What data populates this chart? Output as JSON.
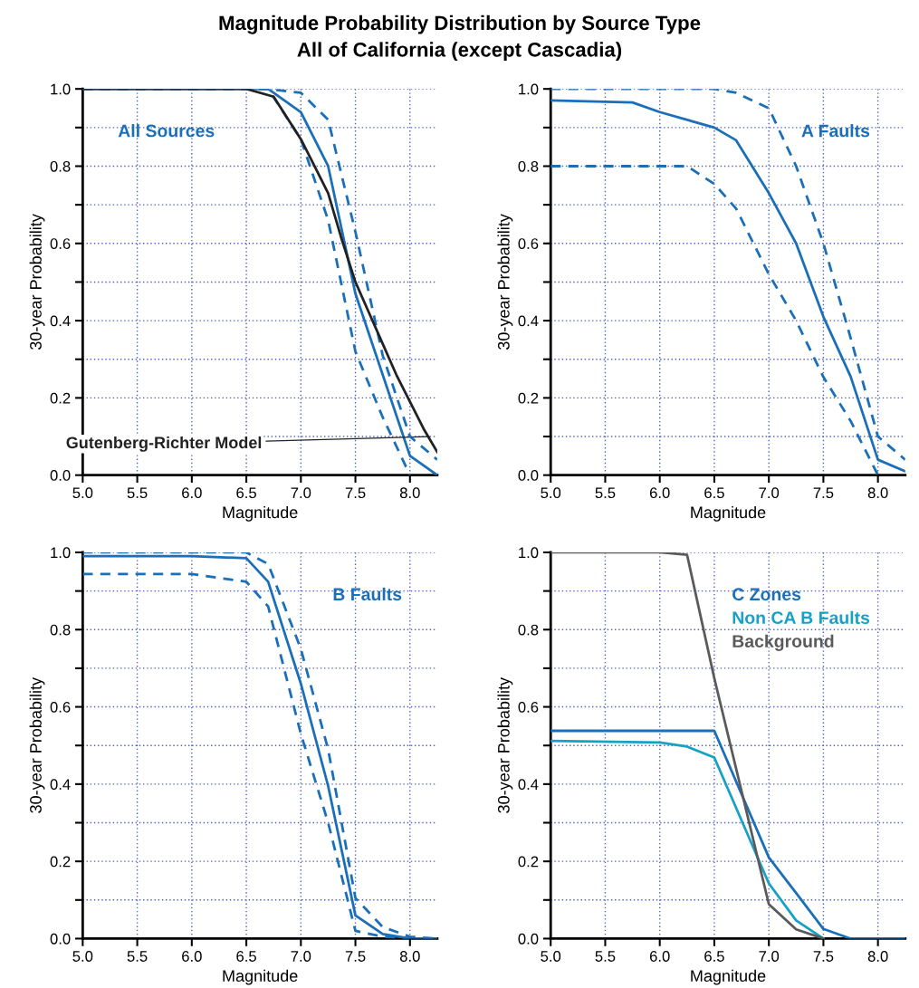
{
  "chart_data": [
    {
      "type": "line",
      "title": "Magnitude Probability Distribution by Source Type",
      "subtitle": "All of California (except Cascadia)",
      "xlabel": "Magnitude",
      "ylabel": "30-year Probability",
      "xlim": [
        5.0,
        8.25
      ],
      "ylim": [
        0.0,
        1.0
      ],
      "xticks": [
        {
          "value": 5.0,
          "label": "5.0"
        },
        5.5,
        {
          "value": 6.0,
          "label": "6.0"
        },
        6.5,
        {
          "value": 7.0,
          "label": "7.0"
        },
        7.5,
        {
          "value": 8.0,
          "label": "8.0"
        }
      ],
      "yticks": [
        {
          "value": 0.0,
          "label": "0.0"
        },
        {
          "value": 0.1,
          "label": null
        },
        0.2,
        {
          "value": 0.3,
          "label": null
        },
        0.4,
        {
          "value": 0.5,
          "label": null
        },
        0.6,
        {
          "value": 0.7,
          "label": null
        },
        0.8,
        {
          "value": 0.9,
          "label": null
        },
        {
          "value": 1.0,
          "label": "1.0"
        }
      ],
      "grid": true,
      "legend": "top left",
      "marker": "none",
      "annotations": [
        {
          "text": "Gutenberg-Richter Model",
          "x": 8.2,
          "y": 0.1
        }
      ],
      "series": [
        {
          "name": "All Sources",
          "color": "#1b6fb8",
          "line_style": "solid",
          "x": [
            5.0,
            6.5,
            6.7,
            7.0,
            7.25,
            7.5,
            8.0,
            8.25
          ],
          "values": [
            1.0,
            1.0,
            1.0,
            0.94,
            0.8,
            0.47,
            0.05,
            0.0
          ]
        },
        {
          "color": "#1b6fb8",
          "line_style": "dashed",
          "x": [
            5.0,
            6.5,
            6.7,
            7.0,
            7.25,
            7.5,
            7.75,
            8.0,
            8.25
          ],
          "values": [
            1.0,
            1.0,
            1.0,
            0.99,
            0.92,
            0.63,
            0.31,
            0.1,
            0.04
          ]
        },
        {
          "color": "#1b6fb8",
          "line_style": "dashed",
          "x": [
            5.0,
            6.5,
            6.7,
            7.0,
            7.25,
            7.5,
            7.75,
            8.0
          ],
          "values": [
            1.0,
            1.0,
            1.0,
            0.87,
            0.66,
            0.32,
            0.15,
            0.0
          ]
        },
        {
          "color": "#222222",
          "line_style": "solid",
          "x": [
            5.0,
            6.25,
            6.5,
            6.75,
            7.0,
            7.125,
            7.25,
            7.375,
            7.5,
            7.625,
            7.75,
            7.875,
            8.0,
            8.125,
            8.25
          ],
          "values": [
            1.0,
            1.0,
            1.0,
            0.98,
            0.87,
            0.8,
            0.73,
            0.61,
            0.5,
            0.42,
            0.34,
            0.26,
            0.19,
            0.12,
            0.06
          ]
        }
      ]
    },
    {
      "type": "line",
      "xlabel": "Magnitude",
      "ylabel": "30-year Probability",
      "xlim": [
        5.0,
        8.25
      ],
      "ylim": [
        0.0,
        1.0
      ],
      "xticks": [
        {
          "value": 5.0,
          "label": "5.0"
        },
        5.5,
        {
          "value": 6.0,
          "label": "6.0"
        },
        6.5,
        {
          "value": 7.0,
          "label": "7.0"
        },
        7.5,
        {
          "value": 8.0,
          "label": "8.0"
        }
      ],
      "yticks": [
        {
          "value": 0.0,
          "label": "0.0"
        },
        {
          "value": 0.1,
          "label": null
        },
        0.2,
        {
          "value": 0.3,
          "label": null
        },
        0.4,
        {
          "value": 0.5,
          "label": null
        },
        0.6,
        {
          "value": 0.7,
          "label": null
        },
        0.8,
        {
          "value": 0.9,
          "label": null
        },
        {
          "value": 1.0,
          "label": "1.0"
        }
      ],
      "grid": true,
      "legend": "top right",
      "marker": "none",
      "series": [
        {
          "name": "A Faults",
          "color": "#1b6fb8",
          "line_style": "solid",
          "x": [
            5.0,
            5.75,
            6.0,
            6.5,
            6.7,
            7.0,
            7.25,
            7.5,
            7.75,
            8.0,
            8.25
          ],
          "values": [
            0.97,
            0.965,
            0.94,
            0.9,
            0.867,
            0.73,
            0.6,
            0.41,
            0.255,
            0.04,
            0.01
          ]
        },
        {
          "color": "#1b6fb8",
          "line_style": "dashed",
          "x": [
            5.0,
            6.5,
            6.7,
            7.0,
            7.25,
            7.5,
            7.75,
            8.0,
            8.25
          ],
          "values": [
            1.0,
            1.0,
            0.99,
            0.95,
            0.8,
            0.6,
            0.355,
            0.1,
            0.04
          ]
        },
        {
          "color": "#1b6fb8",
          "line_style": "dashed",
          "x": [
            5.0,
            6.25,
            6.5,
            6.7,
            7.0,
            7.25,
            7.5,
            7.75,
            8.0
          ],
          "values": [
            0.8,
            0.8,
            0.754,
            0.69,
            0.52,
            0.4,
            0.254,
            0.14,
            0.0
          ]
        }
      ]
    },
    {
      "type": "line",
      "xlabel": "Magnitude",
      "ylabel": "30-year Probability",
      "xlim": [
        5.0,
        8.25
      ],
      "ylim": [
        0.0,
        1.0
      ],
      "xticks": [
        {
          "value": 5.0,
          "label": "5.0"
        },
        5.5,
        {
          "value": 6.0,
          "label": "6.0"
        },
        6.5,
        {
          "value": 7.0,
          "label": "7.0"
        },
        7.5,
        {
          "value": 8.0,
          "label": "8.0"
        }
      ],
      "yticks": [
        {
          "value": 0.0,
          "label": "0.0"
        },
        {
          "value": 0.1,
          "label": null
        },
        0.2,
        {
          "value": 0.3,
          "label": null
        },
        0.4,
        {
          "value": 0.5,
          "label": null
        },
        0.6,
        {
          "value": 0.7,
          "label": null
        },
        0.8,
        {
          "value": 0.9,
          "label": null
        },
        {
          "value": 1.0,
          "label": "1.0"
        }
      ],
      "grid": true,
      "legend": "top right",
      "marker": "none",
      "series": [
        {
          "name": "B Faults",
          "color": "#1b6fb8",
          "line_style": "solid",
          "x": [
            5.0,
            6.0,
            6.5,
            6.7,
            7.0,
            7.25,
            7.5,
            7.75,
            8.0,
            8.25
          ],
          "values": [
            0.99,
            0.99,
            0.985,
            0.924,
            0.66,
            0.395,
            0.06,
            0.012,
            0.0,
            0.0
          ]
        },
        {
          "color": "#1b6fb8",
          "line_style": "dashed",
          "x": [
            5.0,
            6.5,
            6.7,
            7.0,
            7.25,
            7.5,
            7.75,
            8.0,
            8.25
          ],
          "values": [
            1.0,
            1.0,
            0.97,
            0.75,
            0.49,
            0.105,
            0.03,
            0.005,
            0.0
          ]
        },
        {
          "color": "#1b6fb8",
          "line_style": "dashed",
          "x": [
            5.0,
            6.0,
            6.5,
            6.7,
            7.0,
            7.25,
            7.5,
            7.75,
            8.0
          ],
          "values": [
            0.944,
            0.944,
            0.924,
            0.86,
            0.53,
            0.3,
            0.02,
            0.005,
            0.0
          ]
        }
      ]
    },
    {
      "type": "line",
      "xlabel": "Magnitude",
      "ylabel": "30-year Probability",
      "xlim": [
        5.0,
        8.25
      ],
      "ylim": [
        0.0,
        1.0
      ],
      "xticks": [
        {
          "value": 5.0,
          "label": "5.0"
        },
        5.5,
        {
          "value": 6.0,
          "label": "6.0"
        },
        6.5,
        {
          "value": 7.0,
          "label": "7.0"
        },
        7.5,
        {
          "value": 8.0,
          "label": "8.0"
        }
      ],
      "yticks": [
        {
          "value": 0.0,
          "label": "0.0"
        },
        {
          "value": 0.1,
          "label": null
        },
        0.2,
        {
          "value": 0.3,
          "label": null
        },
        0.4,
        {
          "value": 0.5,
          "label": null
        },
        0.6,
        {
          "value": 0.7,
          "label": null
        },
        0.8,
        {
          "value": 0.9,
          "label": null
        },
        {
          "value": 1.0,
          "label": "1.0"
        }
      ],
      "grid": true,
      "legend": "top right",
      "marker": "none",
      "series": [
        {
          "name": "C Zones",
          "color": "#1b6fb8",
          "line_style": "solid",
          "x": [
            5.0,
            6.5,
            7.0,
            7.25,
            7.5,
            7.75,
            8.0,
            8.25
          ],
          "values": [
            0.538,
            0.538,
            0.21,
            0.118,
            0.025,
            0.0,
            0.0,
            0.0
          ]
        },
        {
          "name": "Non CA B Faults",
          "color": "#16a2c6",
          "line_style": "solid",
          "x": [
            5.0,
            6.0,
            6.25,
            6.5,
            7.0,
            7.25,
            7.5
          ],
          "values": [
            0.512,
            0.508,
            0.497,
            0.469,
            0.143,
            0.047,
            0.0
          ]
        },
        {
          "name": "Background",
          "color": "#5a5a5a",
          "line_style": "solid",
          "x": [
            5.0,
            6.0,
            6.25,
            6.5,
            7.0,
            7.25,
            7.5
          ],
          "values": [
            1.0,
            1.0,
            0.994,
            0.674,
            0.089,
            0.024,
            0.0
          ]
        }
      ]
    }
  ]
}
